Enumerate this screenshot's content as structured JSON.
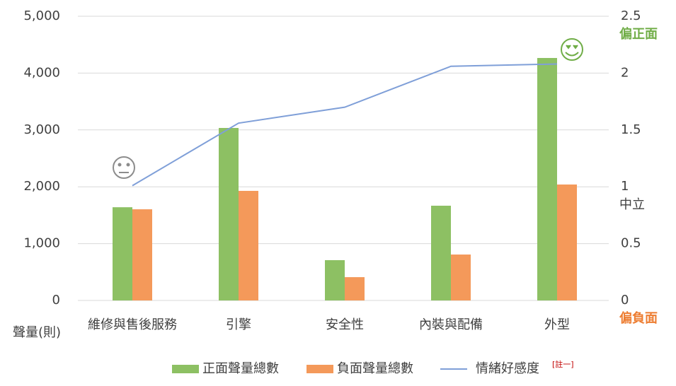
{
  "chart_data": {
    "type": "bar-line",
    "y_axis_title": "聲量(則)",
    "categories": [
      "維修與售後服務",
      "引擎",
      "安全性",
      "內裝與配備",
      "外型"
    ],
    "series": [
      {
        "name": "正面聲量總數",
        "color": "#8dc063",
        "type": "bar",
        "values": [
          1640,
          3035,
          709,
          1667,
          4266
        ]
      },
      {
        "name": "負面聲量總數",
        "color": "#f4995a",
        "type": "bar",
        "values": [
          1604,
          1928,
          410,
          808,
          2040
        ]
      },
      {
        "name": "情緒好感度",
        "color": "#7f9fd8",
        "type": "line",
        "axis": "y2",
        "values": [
          1.01,
          1.56,
          1.7,
          2.06,
          2.08
        ]
      }
    ],
    "legend_note": "[註一]",
    "ylim": [
      0,
      5000
    ],
    "yticks": [
      0,
      {
        "value": 1000,
        "label": "1,000"
      },
      {
        "value": 2000,
        "label": "2,000"
      },
      {
        "value": 3000,
        "label": "3,000"
      },
      {
        "value": 4000,
        "label": "4,000"
      },
      {
        "value": 5000,
        "label": "5,000"
      }
    ],
    "y2lim": [
      0,
      2.5
    ],
    "y2ticks": [
      0,
      0.5,
      1,
      1.5,
      2,
      2.5
    ],
    "y2_annotations": [
      "偏正面",
      "中立",
      "偏負面"
    ],
    "grid": true
  }
}
